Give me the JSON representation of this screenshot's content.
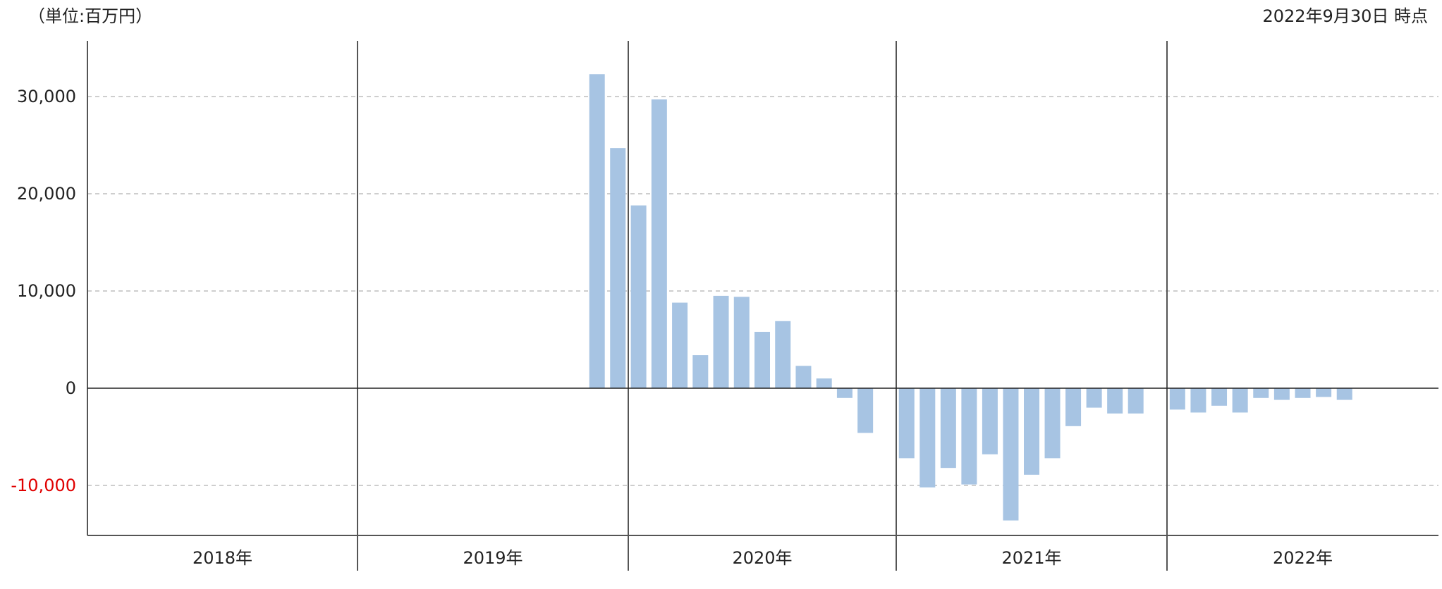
{
  "header": {
    "unit": "（単位:百万円）",
    "as_of": "2022年9月30日 時点"
  },
  "colors": {
    "bar": "#a7c4e3",
    "axis": "#555555",
    "grid": "#bdbdbd",
    "negative_tick": "#e00000",
    "text": "#222222"
  },
  "chart_data": {
    "type": "bar",
    "title": "",
    "xlabel": "",
    "ylabel": "",
    "ylim": [
      -15000,
      35000
    ],
    "yticks": [
      30000,
      20000,
      10000,
      0,
      -10000
    ],
    "ytick_labels": [
      "30,000",
      "20,000",
      "10,000",
      "0",
      "-10,000"
    ],
    "grid": true,
    "legend": "none",
    "year_groups": [
      {
        "label": "2018年",
        "year": 2018,
        "values": [
          null,
          null,
          null,
          null,
          null,
          null,
          null,
          null,
          null,
          null,
          null,
          null,
          null
        ]
      },
      {
        "label": "2019年",
        "year": 2019,
        "values": [
          null,
          null,
          null,
          null,
          null,
          null,
          null,
          null,
          null,
          null,
          null,
          32300,
          24700
        ]
      },
      {
        "label": "2020年",
        "year": 2020,
        "values": [
          18800,
          29700,
          8800,
          3400,
          9500,
          9400,
          5800,
          6900,
          2300,
          1000,
          -1000,
          -4600
        ]
      },
      {
        "label": "2021年",
        "year": 2021,
        "values": [
          -7200,
          -10200,
          -8200,
          -9900,
          -6800,
          -13600,
          -8900,
          -7200,
          -3900,
          -2000,
          -2600,
          -2600
        ]
      },
      {
        "label": "2022年",
        "year": 2022,
        "values": [
          -2200,
          -2500,
          -1800,
          -2500,
          -1000,
          -1200,
          -1000,
          -900,
          -1200
        ]
      }
    ]
  }
}
